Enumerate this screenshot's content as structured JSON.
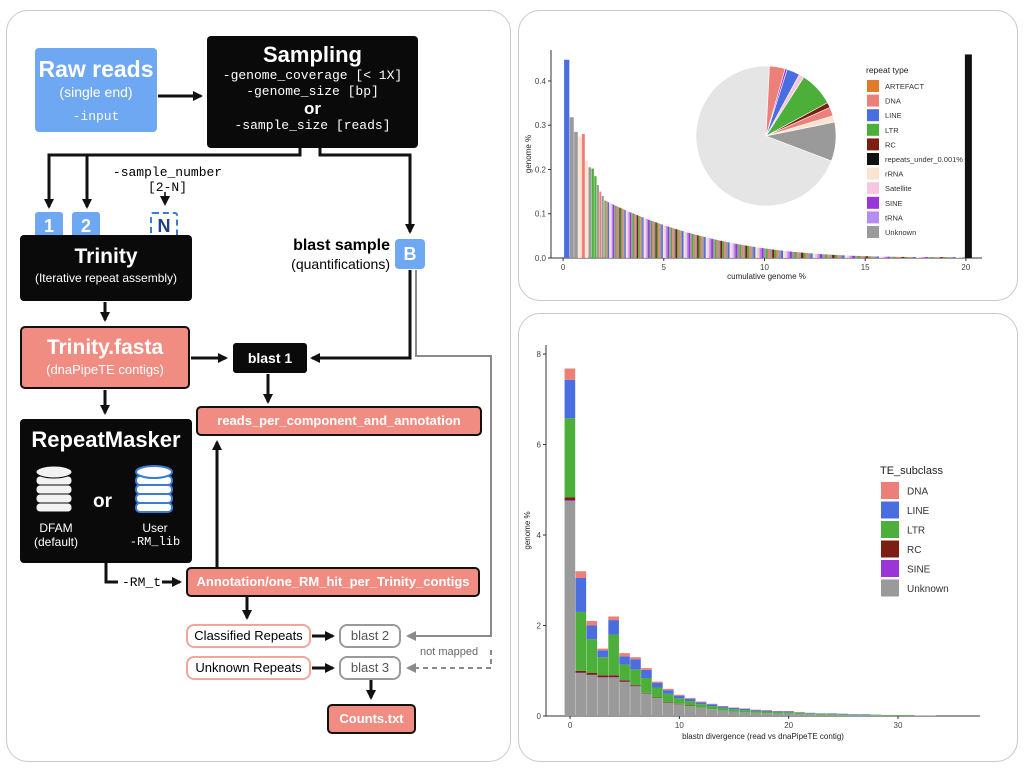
{
  "workflow": {
    "raw_reads": {
      "title": "Raw reads",
      "subtitle": "(single end)",
      "param": "-input"
    },
    "sampling": {
      "title": "Sampling",
      "line1": "-genome_coverage [< 1X]",
      "line2": "-genome_size [bp]",
      "or": "or",
      "line3": "-sample_size [reads]"
    },
    "sample_number": {
      "line1": "-sample_number",
      "line2": "[2-N]"
    },
    "sample_labels": [
      "1",
      "2",
      "N"
    ],
    "trinity": {
      "title": "Trinity",
      "subtitle": "(Iterative repeat  assembly)"
    },
    "blast_sample": {
      "title": "blast sample",
      "subtitle": "(quantifications)",
      "badge": "B"
    },
    "trinity_fasta": {
      "title": "Trinity.fasta",
      "subtitle": "(dnaPipeTE contigs)"
    },
    "blast1": "blast 1",
    "reads_per_component": "reads_per_component_and_annotation",
    "repeatmasker": {
      "title": "RepeatMasker",
      "or": "or",
      "dfam_line1": "DFAM",
      "dfam_line2": "(default)",
      "user_line1": "User",
      "user_line2": "-RM_lib"
    },
    "rm_t": "-RM_t",
    "annotation": "Annotation/one_RM_hit_per_Trinity_contigs",
    "classified": "Classified Repeats",
    "unknown": "Unknown Repeats",
    "blast2": "blast 2",
    "blast3": "blast 3",
    "not_mapped": "not mapped",
    "counts": "Counts.txt"
  },
  "colors": {
    "ARTEFACT": "#e07b2a",
    "DNA": "#ec8079",
    "LINE": "#4a6ee0",
    "LTR": "#4caf3a",
    "RC": "#7c1e12",
    "repeats_under_0.001%": "#111111",
    "rRNA": "#fbe3d0",
    "Satellite": "#f6c6de",
    "SINE": "#9a35d8",
    "tRNA": "#b58df0",
    "Unknown": "#9a9a9a"
  },
  "chart_data": [
    {
      "type": "bar",
      "xlabel": "cumulative genome %",
      "ylabel": "genome %",
      "xlim": [
        -0.6,
        20.8
      ],
      "ylim": [
        0,
        0.47
      ],
      "xticks": [
        "0",
        "5",
        "10",
        "15",
        "20"
      ],
      "yticks": [
        "0.0",
        "0.1",
        "0.2",
        "0.3",
        "0.4"
      ],
      "legend_title": "repeat type",
      "legend": [
        "ARTEFACT",
        "DNA",
        "LINE",
        "LTR",
        "RC",
        "repeats_under_0.001%",
        "rRNA",
        "Satellite",
        "SINE",
        "tRNA",
        "Unknown"
      ],
      "bars": [
        {
          "x": 0.05,
          "w": 0.26,
          "y": 0.448,
          "c": "LINE"
        },
        {
          "x": 0.33,
          "w": 0.2,
          "y": 0.318,
          "c": "Unknown"
        },
        {
          "x": 0.55,
          "w": 0.18,
          "y": 0.285,
          "c": "Unknown"
        },
        {
          "x": 0.75,
          "w": 0.16,
          "y": 0.275,
          "c": "rRNA"
        },
        {
          "x": 0.93,
          "w": 0.15,
          "y": 0.28,
          "c": "DNA"
        },
        {
          "x": 1.1,
          "w": 0.14,
          "y": 0.22,
          "c": "rRNA"
        },
        {
          "x": 1.26,
          "w": 0.13,
          "y": 0.205,
          "c": "Unknown"
        },
        {
          "x": 1.41,
          "w": 0.12,
          "y": 0.202,
          "c": "LTR"
        },
        {
          "x": 1.55,
          "w": 0.11,
          "y": 0.185,
          "c": "LTR"
        },
        {
          "x": 1.68,
          "w": 0.1,
          "y": 0.165,
          "c": "Unknown"
        },
        {
          "x": 1.8,
          "w": 0.1,
          "y": 0.15,
          "c": "DNA"
        },
        {
          "x": 1.92,
          "w": 0.1,
          "y": 0.14,
          "c": "Unknown"
        }
      ],
      "tail": {
        "x_start": 2.05,
        "x_end": 19.9,
        "y_start": 0.13,
        "y_end": 0.002,
        "repeats_under_x": 19.95,
        "repeats_under_y": 0.46
      },
      "pie": [
        {
          "c": "Unknown",
          "v": 0.7
        },
        {
          "c": "Unknown",
          "v": 0.09
        },
        {
          "c": "rRNA",
          "v": 0.015
        },
        {
          "c": "DNA",
          "v": 0.02
        },
        {
          "c": "RC",
          "v": 0.012
        },
        {
          "c": "LTR",
          "v": 0.08
        },
        {
          "c": "Satellite",
          "v": 0.012
        },
        {
          "c": "LINE",
          "v": 0.03
        },
        {
          "c": "SINE",
          "v": 0.005
        },
        {
          "c": "DNA",
          "v": 0.036
        }
      ]
    },
    {
      "type": "bar",
      "stacked": true,
      "xlabel": "blastn divergence (read vs dnaPipeTE contig)",
      "ylabel": "genome %",
      "xlim": [
        -2.2,
        37.5
      ],
      "ylim": [
        0,
        8.2
      ],
      "xticks": [
        "0",
        "10",
        "20",
        "30"
      ],
      "yticks": [
        "0",
        "2",
        "4",
        "6",
        "8"
      ],
      "legend_title": "TE_subclass",
      "legend": [
        "DNA",
        "LINE",
        "LTR",
        "RC",
        "SINE",
        "Unknown"
      ],
      "stack_order": [
        "Unknown",
        "SINE",
        "RC",
        "LTR",
        "LINE",
        "DNA"
      ],
      "series": [
        {
          "name": "Unknown",
          "values": [
            4.75,
            0.95,
            0.9,
            0.85,
            0.85,
            0.75,
            0.65,
            0.5,
            0.4,
            0.3,
            0.26,
            0.22,
            0.18,
            0.15,
            0.12,
            0.1,
            0.08,
            0.07,
            0.06,
            0.05,
            0.05,
            0.04,
            0.04,
            0.03,
            0.03,
            0.02,
            0.02,
            0.02,
            0.02,
            0.01,
            0.01,
            0.01,
            0.01,
            0.01,
            0.0
          ]
        },
        {
          "name": "SINE",
          "values": [
            0.02,
            0.01,
            0.01,
            0.01,
            0.01,
            0.01,
            0.01,
            0.0,
            0.0,
            0.0,
            0.0,
            0.0,
            0.0,
            0.0,
            0.0,
            0.0,
            0.0,
            0.0,
            0.0,
            0.0,
            0.0,
            0.0,
            0.0,
            0.0,
            0.0,
            0.0,
            0.0,
            0.0,
            0.0,
            0.0,
            0.0,
            0.0,
            0.0,
            0.0,
            0.0
          ]
        },
        {
          "name": "RC",
          "values": [
            0.06,
            0.04,
            0.04,
            0.04,
            0.04,
            0.03,
            0.02,
            0.01,
            0.01,
            0.01,
            0.01,
            0.01,
            0.0,
            0.0,
            0.0,
            0.0,
            0.0,
            0.0,
            0.0,
            0.0,
            0.0,
            0.0,
            0.0,
            0.0,
            0.0,
            0.0,
            0.0,
            0.0,
            0.0,
            0.0,
            0.0,
            0.0,
            0.0,
            0.0,
            0.0
          ]
        },
        {
          "name": "LTR",
          "values": [
            1.75,
            1.3,
            0.75,
            0.4,
            0.9,
            0.35,
            0.35,
            0.33,
            0.22,
            0.18,
            0.12,
            0.1,
            0.08,
            0.07,
            0.06,
            0.05,
            0.05,
            0.04,
            0.04,
            0.03,
            0.03,
            0.03,
            0.02,
            0.02,
            0.02,
            0.02,
            0.01,
            0.01,
            0.01,
            0.01,
            0.01,
            0.01,
            0.0,
            0.0,
            0.0
          ]
        },
        {
          "name": "LINE",
          "values": [
            0.85,
            0.75,
            0.3,
            0.15,
            0.32,
            0.18,
            0.22,
            0.18,
            0.1,
            0.08,
            0.06,
            0.05,
            0.04,
            0.04,
            0.03,
            0.03,
            0.03,
            0.02,
            0.02,
            0.02,
            0.02,
            0.01,
            0.01,
            0.01,
            0.01,
            0.01,
            0.01,
            0.01,
            0.0,
            0.0,
            0.0,
            0.0,
            0.0,
            0.0,
            0.0
          ]
        },
        {
          "name": "DNA",
          "values": [
            0.25,
            0.15,
            0.1,
            0.04,
            0.08,
            0.07,
            0.05,
            0.04,
            0.03,
            0.03,
            0.02,
            0.02,
            0.02,
            0.01,
            0.01,
            0.01,
            0.01,
            0.01,
            0.01,
            0.01,
            0.01,
            0.01,
            0.0,
            0.0,
            0.0,
            0.0,
            0.0,
            0.0,
            0.0,
            0.0,
            0.0,
            0.0,
            0.0,
            0.0,
            0.0
          ]
        }
      ],
      "x": [
        0,
        1,
        2,
        3,
        4,
        5,
        6,
        7,
        8,
        9,
        10,
        11,
        12,
        13,
        14,
        15,
        16,
        17,
        18,
        19,
        20,
        21,
        22,
        23,
        24,
        25,
        26,
        27,
        28,
        29,
        30,
        31,
        32,
        33,
        34
      ]
    }
  ]
}
